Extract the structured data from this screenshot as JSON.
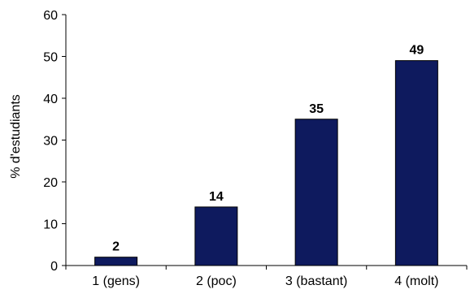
{
  "chart_data": {
    "type": "bar",
    "categories": [
      "1 (gens)",
      "2 (poc)",
      "3 (bastant)",
      "4 (molt)"
    ],
    "values": [
      2,
      14,
      35,
      49
    ],
    "data_labels": [
      "2",
      "14",
      "35",
      "49"
    ],
    "title": "",
    "xlabel": "",
    "ylabel": "% d'estudiants",
    "ylim": [
      0,
      60
    ],
    "yticks": [
      0,
      10,
      20,
      30,
      40,
      50,
      60
    ],
    "grid": false,
    "legend": "none",
    "bar_color": "#0e1a5e"
  }
}
